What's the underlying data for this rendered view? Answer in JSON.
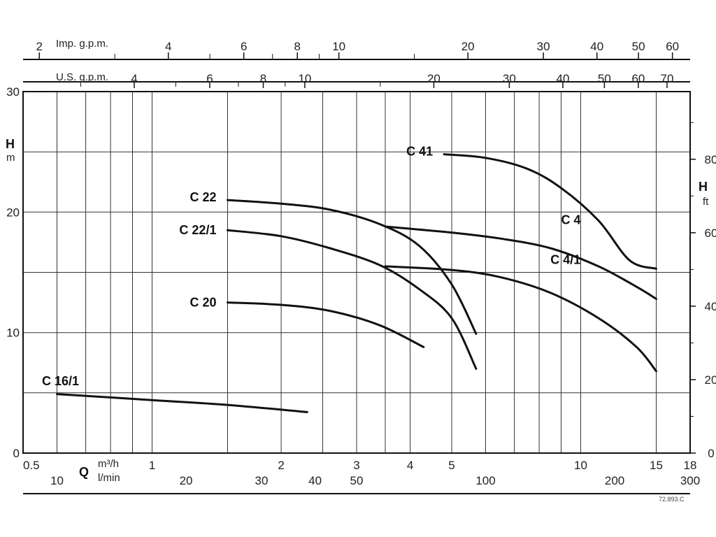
{
  "chart_data": {
    "type": "line",
    "title": "",
    "axes": {
      "x_bottom_m3h": {
        "label": "m³/h",
        "scale": "log",
        "range": [
          0.5,
          18
        ],
        "ticks": [
          {
            "v": 0.5,
            "label": "0.5"
          },
          {
            "v": 1,
            "label": "1"
          },
          {
            "v": 2,
            "label": "2"
          },
          {
            "v": 3,
            "label": "3"
          },
          {
            "v": 4,
            "label": "4"
          },
          {
            "v": 5,
            "label": "5"
          },
          {
            "v": 10,
            "label": "10"
          },
          {
            "v": 15,
            "label": "15"
          },
          {
            "v": 18,
            "label": "18"
          }
        ],
        "grid": [
          0.5,
          0.6,
          0.7,
          0.8,
          0.9,
          1,
          1.5,
          2,
          2.5,
          3,
          3.5,
          4,
          5,
          6,
          7,
          8,
          9,
          10,
          15
        ]
      },
      "x_bottom_lmin": {
        "label": "l/min",
        "ticks": [
          {
            "v": 10,
            "label": "10"
          },
          {
            "v": 20,
            "label": "20"
          },
          {
            "v": 30,
            "label": "30"
          },
          {
            "v": 40,
            "label": "40"
          },
          {
            "v": 50,
            "label": "50"
          },
          {
            "v": 100,
            "label": "100"
          },
          {
            "v": 200,
            "label": "200"
          },
          {
            "v": 300,
            "label": "300"
          }
        ]
      },
      "x_top_imp": {
        "label": "Imp. g.p.m.",
        "ticks": [
          {
            "v": 2,
            "label": "2"
          },
          {
            "v": 4,
            "label": "4"
          },
          {
            "v": 6,
            "label": "6"
          },
          {
            "v": 8,
            "label": "8"
          },
          {
            "v": 10,
            "label": "10"
          },
          {
            "v": 20,
            "label": "20"
          },
          {
            "v": 30,
            "label": "30"
          },
          {
            "v": 40,
            "label": "40"
          },
          {
            "v": 50,
            "label": "50"
          },
          {
            "v": 60,
            "label": "60"
          }
        ],
        "minor": [
          3,
          5,
          7,
          9,
          15
        ]
      },
      "x_top_us": {
        "label": "U.S. g.p.m.",
        "ticks": [
          {
            "v": 4,
            "label": "4"
          },
          {
            "v": 6,
            "label": "6"
          },
          {
            "v": 8,
            "label": "8"
          },
          {
            "v": 10,
            "label": "10"
          },
          {
            "v": 20,
            "label": "20"
          },
          {
            "v": 30,
            "label": "30"
          },
          {
            "v": 40,
            "label": "40"
          },
          {
            "v": 50,
            "label": "50"
          },
          {
            "v": 60,
            "label": "60"
          },
          {
            "v": 70,
            "label": "70"
          }
        ],
        "minor": [
          3,
          5,
          7,
          9,
          15
        ]
      },
      "y_left_m": {
        "label": "H",
        "unit": "m",
        "range": [
          0,
          30
        ],
        "ticks": [
          {
            "v": 0,
            "label": "0"
          },
          {
            "v": 10,
            "label": "10"
          },
          {
            "v": 20,
            "label": "20"
          },
          {
            "v": 30,
            "label": "30"
          }
        ],
        "grid": [
          5,
          10,
          15,
          20,
          25
        ]
      },
      "y_right_ft": {
        "label": "H",
        "unit": "ft",
        "ticks": [
          {
            "v": 0,
            "label": "0"
          },
          {
            "v": 20,
            "label": "20"
          },
          {
            "v": 40,
            "label": "40"
          },
          {
            "v": 60,
            "label": "60"
          },
          {
            "v": 80,
            "label": "80"
          }
        ],
        "minor": [
          10,
          30,
          50,
          70,
          90
        ]
      }
    },
    "bottom_axis_symbol": "Q",
    "series": [
      {
        "name": "C 16/1",
        "points": [
          [
            0.6,
            4.9
          ],
          [
            1.0,
            4.4
          ],
          [
            1.5,
            4.0
          ],
          [
            2.3,
            3.4
          ]
        ]
      },
      {
        "name": "C 20",
        "points": [
          [
            1.5,
            12.5
          ],
          [
            2.0,
            12.3
          ],
          [
            2.6,
            11.8
          ],
          [
            3.4,
            10.6
          ],
          [
            4.3,
            8.8
          ]
        ]
      },
      {
        "name": "C 22/1",
        "points": [
          [
            1.5,
            18.5
          ],
          [
            2.0,
            18.0
          ],
          [
            2.6,
            17.0
          ],
          [
            3.4,
            15.6
          ],
          [
            4.2,
            13.6
          ],
          [
            5.0,
            11.2
          ],
          [
            5.7,
            7.0
          ]
        ]
      },
      {
        "name": "C 22",
        "points": [
          [
            1.5,
            21.0
          ],
          [
            2.0,
            20.7
          ],
          [
            2.6,
            20.2
          ],
          [
            3.4,
            19.0
          ],
          [
            4.2,
            17.2
          ],
          [
            5.0,
            14.0
          ],
          [
            5.7,
            9.9
          ]
        ]
      },
      {
        "name": "C 41",
        "points": [
          [
            4.8,
            24.8
          ],
          [
            6.0,
            24.5
          ],
          [
            7.5,
            23.6
          ],
          [
            9.0,
            22.0
          ],
          [
            11.0,
            19.3
          ],
          [
            13.0,
            16.0
          ],
          [
            15.0,
            15.3
          ]
        ]
      },
      {
        "name": "C 4",
        "points": [
          [
            3.5,
            18.8
          ],
          [
            5.0,
            18.3
          ],
          [
            6.5,
            17.8
          ],
          [
            8.5,
            17.0
          ],
          [
            11.0,
            15.5
          ],
          [
            13.5,
            13.8
          ],
          [
            15.0,
            12.8
          ]
        ]
      },
      {
        "name": "C 4/1",
        "points": [
          [
            3.5,
            15.5
          ],
          [
            5.0,
            15.2
          ],
          [
            6.5,
            14.6
          ],
          [
            8.5,
            13.3
          ],
          [
            11.0,
            11.2
          ],
          [
            13.5,
            8.8
          ],
          [
            15.0,
            6.8
          ]
        ]
      }
    ],
    "series_labels": [
      "C 16/1",
      "C 20",
      "C 22/1",
      "C 22",
      "C 41",
      "C 4",
      "C 4/1"
    ],
    "footnote": "72.893.C",
    "grid": true,
    "legend": "inline-labels"
  }
}
